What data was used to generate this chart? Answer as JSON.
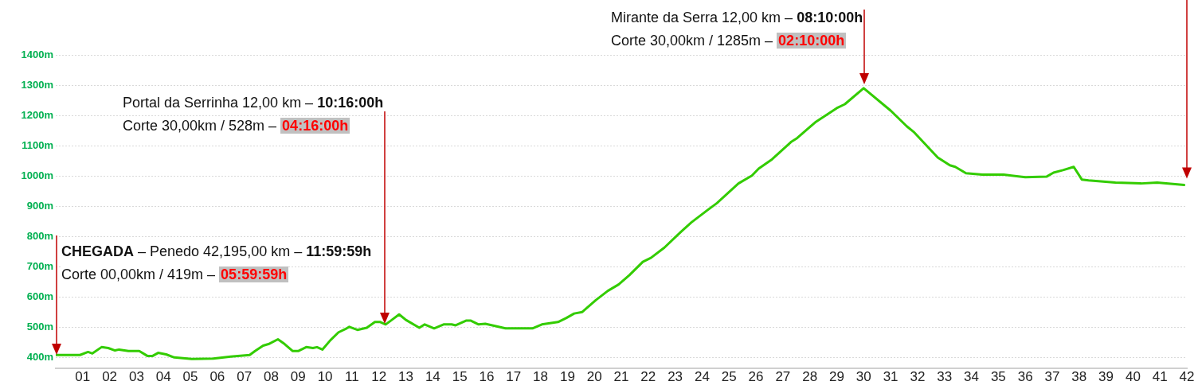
{
  "chart_data": {
    "type": "line",
    "x": [
      0,
      0.9,
      1.2,
      1.36,
      1.7,
      1.95,
      2.2,
      2.35,
      2.7,
      3.1,
      3.4,
      3.6,
      3.8,
      4.1,
      4.4,
      5.05,
      5.85,
      6.5,
      7.2,
      7.4,
      7.7,
      7.9,
      8.25,
      8.5,
      8.8,
      9.0,
      9.3,
      9.55,
      9.7,
      9.9,
      10.2,
      10.5,
      10.8,
      10.9,
      11.2,
      11.55,
      11.85,
      12.05,
      12.25,
      12.45,
      12.75,
      13.0,
      13.5,
      13.7,
      14.05,
      14.4,
      14.7,
      14.85,
      15.25,
      15.4,
      15.7,
      15.95,
      16.7,
      17.7,
      18.05,
      18.65,
      18.95,
      19.25,
      19.55,
      20.05,
      20.5,
      20.9,
      21.3,
      21.8,
      22.1,
      22.6,
      23.2,
      23.6,
      24.2,
      24.55,
      25.35,
      25.85,
      26.1,
      26.6,
      27.3,
      27.5,
      28.2,
      29.0,
      29.3,
      30.0,
      31.0,
      31.6,
      31.85,
      32.75,
      33.2,
      33.4,
      33.8,
      34.4,
      35.2,
      36.0,
      36.8,
      37.05,
      37.4,
      37.8,
      38.1,
      38.35,
      39.35,
      40.3,
      40.9,
      41.9
    ],
    "series": [
      {
        "color": "#33cc00",
        "values": [
          408,
          408,
          418,
          413,
          434,
          431,
          423,
          426,
          421,
          421,
          405,
          405,
          415,
          410,
          400,
          395,
          396,
          403,
          408,
          421,
          439,
          444,
          460,
          444,
          421,
          421,
          434,
          431,
          434,
          426,
          457,
          483,
          496,
          501,
          491,
          498,
          517,
          517,
          509,
          522,
          542,
          524,
          498,
          509,
          496,
          509,
          509,
          506,
          522,
          522,
          509,
          511,
          496,
          496,
          509,
          517,
          530,
          545,
          550,
          589,
          620,
          641,
          672,
          716,
          729,
          763,
          814,
          846,
          887,
          910,
          975,
          1001,
          1024,
          1055,
          1112,
          1123,
          1177,
          1224,
          1237,
          1290,
          1216,
          1164,
          1146,
          1061,
          1035,
          1030,
          1009,
          1004,
          1004,
          996,
          998,
          1011,
          1019,
          1030,
          988,
          985,
          978,
          975,
          978,
          970
        ]
      }
    ],
    "xlim": [
      0,
      42
    ],
    "xticks": [
      {
        "value": 1,
        "label": "01"
      },
      {
        "value": 2,
        "label": "02"
      },
      {
        "value": 3,
        "label": "03"
      },
      {
        "value": 4,
        "label": "04"
      },
      {
        "value": 5,
        "label": "05"
      },
      {
        "value": 6,
        "label": "06"
      },
      {
        "value": 7,
        "label": "07"
      },
      {
        "value": 8,
        "label": "08"
      },
      {
        "value": 9,
        "label": "09"
      },
      {
        "value": 10,
        "label": "10"
      },
      {
        "value": 11,
        "label": "11"
      },
      {
        "value": 12,
        "label": "12"
      },
      {
        "value": 13,
        "label": "13"
      },
      {
        "value": 14,
        "label": "14"
      },
      {
        "value": 15,
        "label": "15"
      },
      {
        "value": 16,
        "label": "16"
      },
      {
        "value": 17,
        "label": "17"
      },
      {
        "value": 18,
        "label": "18"
      },
      {
        "value": 19,
        "label": "19"
      },
      {
        "value": 20,
        "label": "20"
      },
      {
        "value": 21,
        "label": "21"
      },
      {
        "value": 22,
        "label": "22"
      },
      {
        "value": 23,
        "label": "23"
      },
      {
        "value": 24,
        "label": "24"
      },
      {
        "value": 25,
        "label": "25"
      },
      {
        "value": 26,
        "label": "26"
      },
      {
        "value": 27,
        "label": "27"
      },
      {
        "value": 28,
        "label": "28"
      },
      {
        "value": 29,
        "label": "29"
      },
      {
        "value": 30,
        "label": "30"
      },
      {
        "value": 31,
        "label": "31"
      },
      {
        "value": 32,
        "label": "32"
      },
      {
        "value": 33,
        "label": "33"
      },
      {
        "value": 34,
        "label": "34"
      },
      {
        "value": 35,
        "label": "35"
      },
      {
        "value": 36,
        "label": "36"
      },
      {
        "value": 37,
        "label": "37"
      },
      {
        "value": 38,
        "label": "38"
      },
      {
        "value": 39,
        "label": "39"
      },
      {
        "value": 40,
        "label": "40"
      },
      {
        "value": 41,
        "label": "41"
      },
      {
        "value": 42,
        "label": "42"
      }
    ],
    "ylim": [
      365,
      1400
    ],
    "yticks": [
      {
        "value": 400,
        "label": "400m"
      },
      {
        "value": 500,
        "label": "500m"
      },
      {
        "value": 600,
        "label": "600m"
      },
      {
        "value": 700,
        "label": "700m"
      },
      {
        "value": 800,
        "label": "800m"
      },
      {
        "value": 900,
        "label": "900m"
      },
      {
        "value": 1000,
        "label": "1000m"
      },
      {
        "value": 1100,
        "label": "1100m"
      },
      {
        "value": 1200,
        "label": "1200m"
      },
      {
        "value": 1300,
        "label": "1300m"
      },
      {
        "value": 1400,
        "label": "1400m"
      }
    ],
    "grid": "y",
    "marker": "none",
    "line_style": "solid",
    "annotations": [
      "CHEGADA – Penedo 42,195,00 km – 11:59:59h",
      "Corte 00,00km / 419m – 05:59:59h",
      "Portal da Serrinha 12,00 km – 10:16:00h",
      "Corte 30,00km / 528m – 04:16:00h",
      "Mirante da Serra 12,00 km – 08:10:00h",
      "Corte 30,00km / 1285m – 02:10:00h"
    ]
  }
}
